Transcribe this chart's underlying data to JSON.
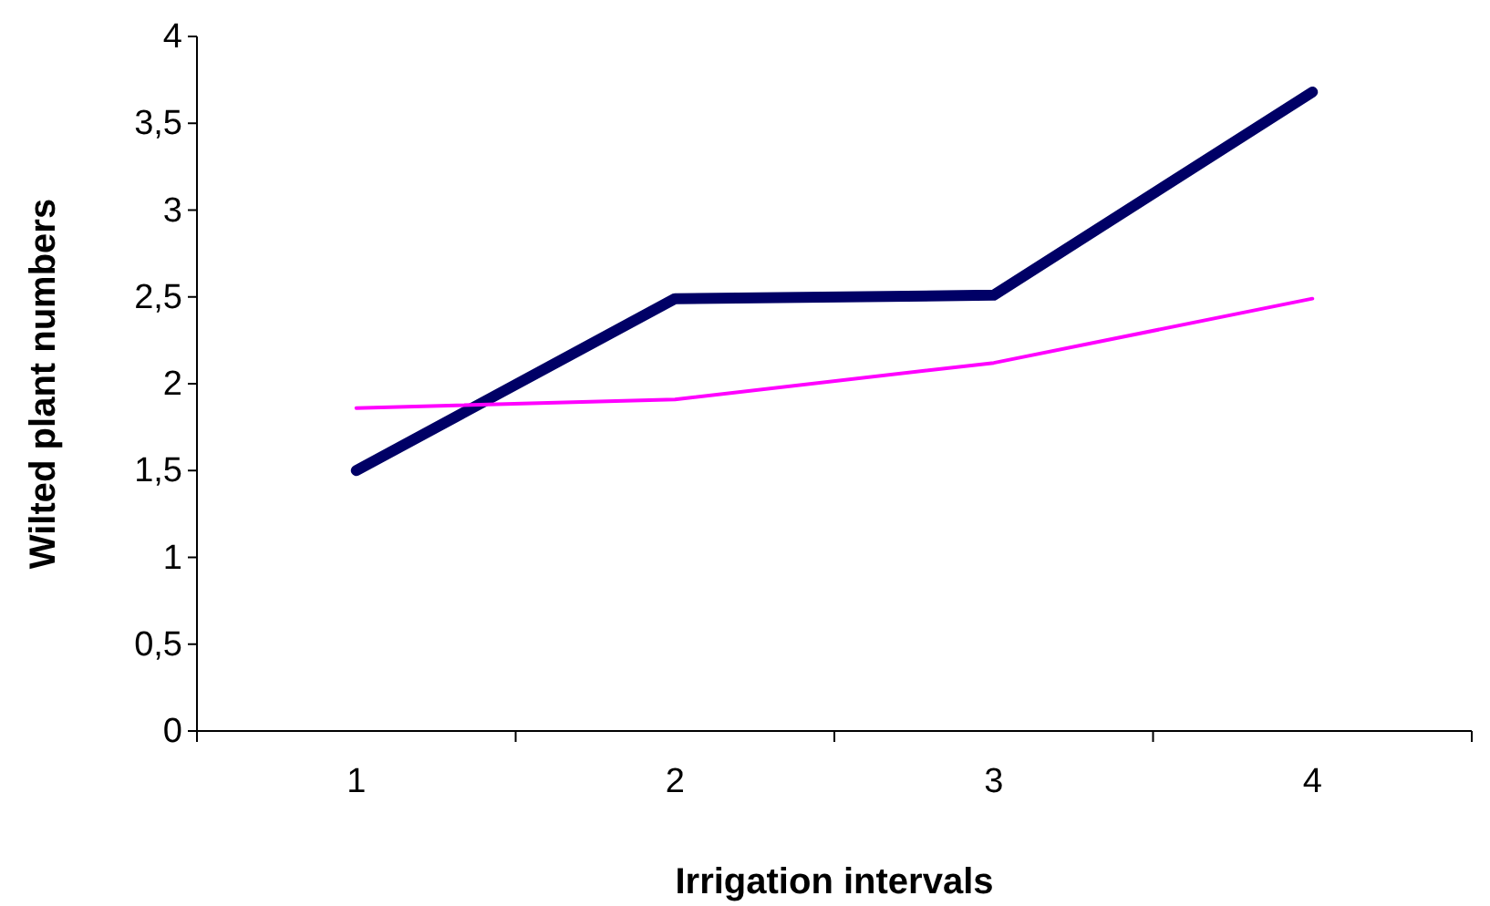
{
  "chart_data": {
    "type": "line",
    "xlabel": "Irrigation intervals",
    "ylabel": "Wilted plant numbers",
    "categories": [
      "1",
      "2",
      "3",
      "4"
    ],
    "series": [
      {
        "color": "#000066",
        "values": [
          1.5,
          2.49,
          2.51,
          3.68
        ]
      },
      {
        "color": "#ff00ff",
        "values": [
          1.86,
          1.91,
          2.12,
          2.49
        ]
      }
    ],
    "ylim": [
      0,
      4
    ],
    "yticks": [
      0,
      {
        "value": 0.5,
        "label": "0,5"
      },
      1,
      {
        "value": 1.5,
        "label": "1,5"
      },
      2,
      {
        "value": 2.5,
        "label": "2,5"
      },
      3,
      {
        "value": 3.5,
        "label": "3,5"
      },
      4
    ],
    "grid": false,
    "marker": "none",
    "line_style": "solid"
  }
}
